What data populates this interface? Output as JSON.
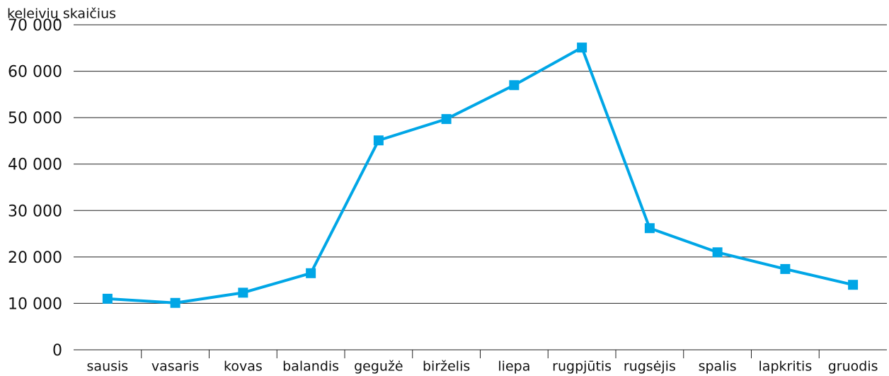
{
  "chart_data": {
    "type": "line",
    "y_axis_label": "keleivių skaičius",
    "categories": [
      "sausis",
      "vasaris",
      "kovas",
      "balandis",
      "gegužė",
      "birželis",
      "liepa",
      "rugpjūtis",
      "rugsėjis",
      "spalis",
      "lapkritis",
      "gruodis"
    ],
    "series": [
      {
        "color": "#00a6e6",
        "values": [
          11000,
          10100,
          12300,
          16500,
          45100,
          49700,
          57000,
          65100,
          26200,
          21000,
          17400,
          14000
        ]
      }
    ],
    "ylim": [
      0,
      70000
    ],
    "yticks": [
      0,
      {
        "value": 10000,
        "label": "10 000"
      },
      {
        "value": 20000,
        "label": "20 000"
      },
      {
        "value": 30000,
        "label": "30 000"
      },
      {
        "value": 40000,
        "label": "40 000"
      },
      {
        "value": 50000,
        "label": "50 000"
      },
      {
        "value": 60000,
        "label": "60 000"
      },
      {
        "value": 70000,
        "label": "70 000"
      }
    ],
    "grid": true
  }
}
